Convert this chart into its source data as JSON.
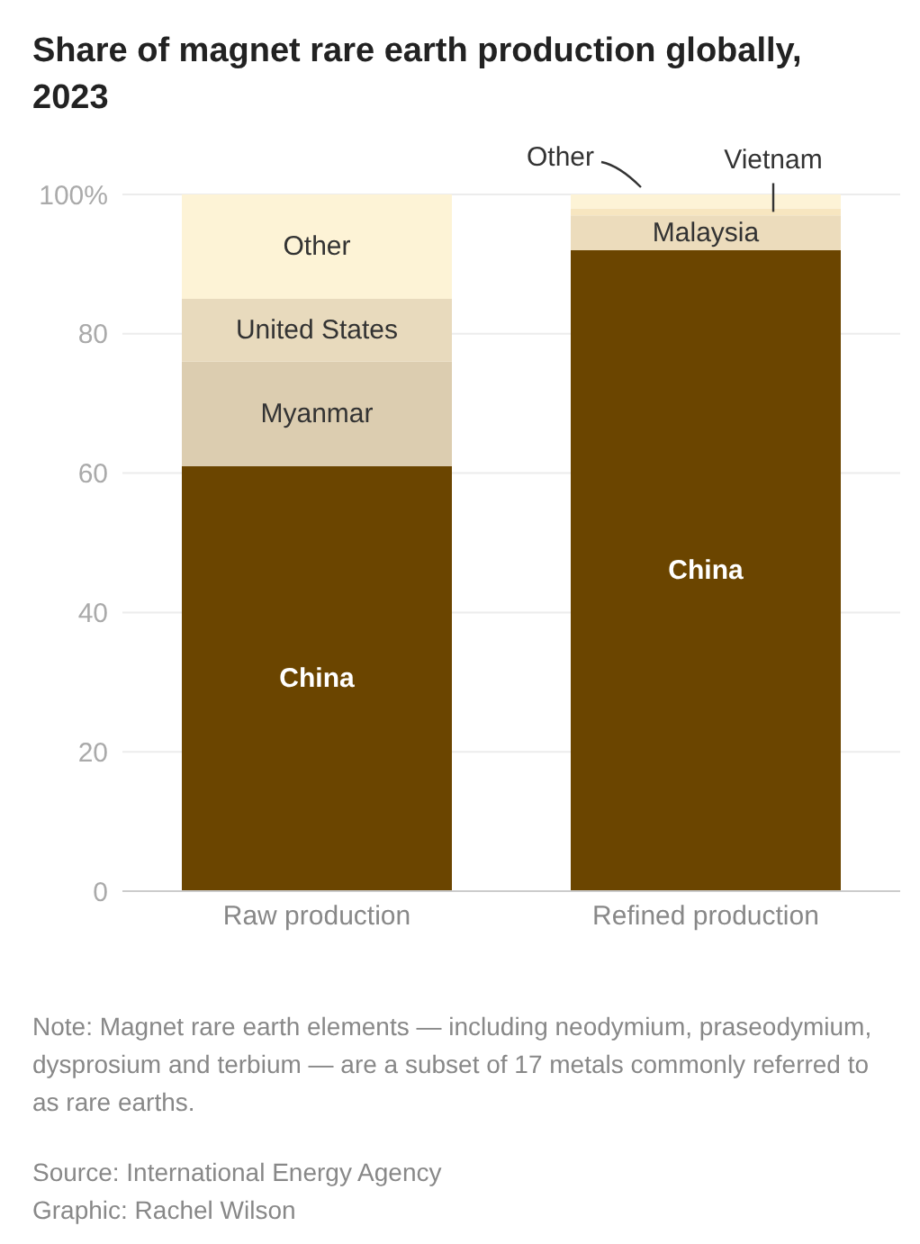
{
  "chart_data": {
    "type": "bar",
    "title": "Share of magnet rare earth production globally, 2023",
    "categories": [
      "Raw production",
      "Refined production"
    ],
    "stacked": true,
    "series": [
      {
        "name": "China",
        "color": "#6b4500",
        "values": [
          61,
          92
        ]
      },
      {
        "name": "Myanmar",
        "color": "#dccdb0",
        "values": [
          15,
          null
        ]
      },
      {
        "name": "Malaysia",
        "color": "#ecdcbc",
        "values": [
          null,
          5
        ]
      },
      {
        "name": "United States",
        "color": "#e8dabd",
        "values": [
          9,
          null
        ]
      },
      {
        "name": "Vietnam",
        "color": "#f7e6c0",
        "values": [
          null,
          1
        ]
      },
      {
        "name": "Other",
        "color": "#fdf3d6",
        "values": [
          15,
          2
        ]
      }
    ],
    "ylim": [
      0,
      100
    ],
    "yticks": [
      0,
      20,
      40,
      60,
      80,
      {
        "value": 100,
        "label": "100%"
      }
    ],
    "grid": "y",
    "legend": false,
    "annotations": [
      "Note: Magnet rare earth elements — including neodymium, praseodymium, dysprosium and terbium — are a subset of 17 metals commonly referred to as rare earths.",
      "Source: International Energy Agency",
      "Graphic: Rachel Wilson"
    ]
  }
}
